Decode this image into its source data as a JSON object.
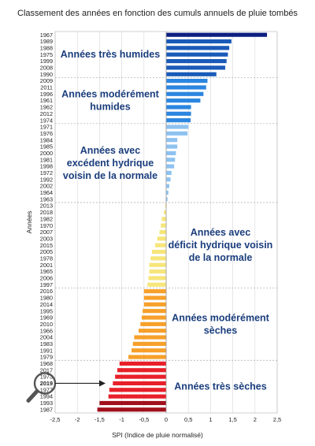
{
  "chart_data": {
    "type": "bar",
    "orientation": "horizontal",
    "title": "Classement des années en fonction des cumuls annuels de pluie tombés",
    "xlabel": "SPI (Indice de pluie normalisé)",
    "ylabel": "Années",
    "xlim": [
      -2.5,
      2.5
    ],
    "xticks": [
      "-2,5",
      "-2",
      "-1,5",
      "-1",
      "-0,5",
      "0",
      "0,5",
      "1",
      "1,5",
      "2",
      "2,5"
    ],
    "grid": "vertical",
    "categories": [
      "1967",
      "1989",
      "1988",
      "1975",
      "1999",
      "2008",
      "1990",
      "2009",
      "2011",
      "1996",
      "1961",
      "1962",
      "2012",
      "1974",
      "1971",
      "1976",
      "1984",
      "1985",
      "2000",
      "1981",
      "1998",
      "1972",
      "1992",
      "2002",
      "1964",
      "1963",
      "2013",
      "2018",
      "1982",
      "1970",
      "2007",
      "2003",
      "2015",
      "2005",
      "1978",
      "2001",
      "1965",
      "2006",
      "1997",
      "2016",
      "1980",
      "2014",
      "1995",
      "1969",
      "2010",
      "1966",
      "2004",
      "1983",
      "1991",
      "1979",
      "1968",
      "2017",
      "1973",
      "2019",
      "1977",
      "1994",
      "1993",
      "1987"
    ],
    "values": [
      2.27,
      1.47,
      1.42,
      1.39,
      1.36,
      1.33,
      1.13,
      0.93,
      0.9,
      0.84,
      0.77,
      0.56,
      0.56,
      0.55,
      0.5,
      0.48,
      0.25,
      0.25,
      0.22,
      0.2,
      0.18,
      0.12,
      0.1,
      0.07,
      0.05,
      0.03,
      -0.02,
      -0.05,
      -0.1,
      -0.12,
      -0.15,
      -0.2,
      -0.25,
      -0.32,
      -0.35,
      -0.38,
      -0.38,
      -0.4,
      -0.42,
      -0.5,
      -0.5,
      -0.5,
      -0.53,
      -0.55,
      -0.58,
      -0.62,
      -0.72,
      -0.75,
      -0.78,
      -0.85,
      -1.05,
      -1.1,
      -1.15,
      -1.2,
      -1.28,
      -1.3,
      -1.5,
      -1.55
    ],
    "highlight": "2019",
    "groups": [
      {
        "label": [
          "Années très humides"
        ],
        "count": 7,
        "color": "#1a3d7c"
      },
      {
        "label": [
          "Années modérément",
          "humides"
        ],
        "count": 7,
        "color": "#1a3d7c"
      },
      {
        "label": [
          "Années avec",
          "excédent hydrique",
          "voisin de la normale"
        ],
        "count": 12,
        "color": "#1a3d7c"
      },
      {
        "label": [
          "Années avec",
          "déficit hydrique voisin",
          "de la normale"
        ],
        "count": 13,
        "color": "#1a3d7c"
      },
      {
        "label": [
          "Années modérément",
          "sèches"
        ],
        "count": 11,
        "color": "#1a3d7c"
      },
      {
        "label": [
          "Années très sèches"
        ],
        "count": 8,
        "color": "#1a3d7c"
      }
    ],
    "bar_colors": [
      "#0d1f80",
      "#1a5ab8",
      "#1a5ab8",
      "#1a5ab8",
      "#1a5ab8",
      "#1a5ab8",
      "#1a5ab8",
      "#2c86e0",
      "#2c86e0",
      "#2c86e0",
      "#2c86e0",
      "#2c86e0",
      "#2c86e0",
      "#2c86e0",
      "#8ec2f0",
      "#8ec2f0",
      "#8ec2f0",
      "#8ec2f0",
      "#8ec2f0",
      "#8ec2f0",
      "#8ec2f0",
      "#8ec2f0",
      "#8ec2f0",
      "#8ec2f0",
      "#8ec2f0",
      "#8ec2f0",
      "#f6e57a",
      "#f6e57a",
      "#f6e57a",
      "#f6e57a",
      "#f6e57a",
      "#f6e57a",
      "#f6e57a",
      "#f6e57a",
      "#f6e57a",
      "#f6e57a",
      "#f6e57a",
      "#f6e57a",
      "#f6e57a",
      "#f7a02a",
      "#f7a02a",
      "#f7a02a",
      "#f7a02a",
      "#f7a02a",
      "#f7a02a",
      "#f7a02a",
      "#f7a02a",
      "#f7a02a",
      "#f7a02a",
      "#f7a02a",
      "#e8202a",
      "#e8202a",
      "#e8202a",
      "#e8202a",
      "#e8202a",
      "#e8202a",
      "#a0101c",
      "#a0101c"
    ]
  }
}
